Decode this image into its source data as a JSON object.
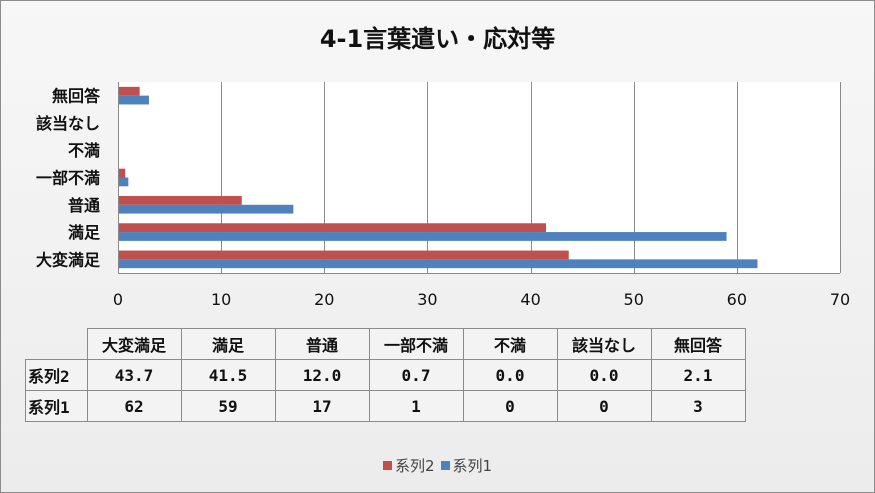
{
  "chart_data": {
    "type": "bar",
    "orientation": "horizontal",
    "title": "4-1言葉遣い・応対等",
    "categories": [
      "大変満足",
      "満足",
      "普通",
      "一部不満",
      "不満",
      "該当なし",
      "無回答"
    ],
    "series": [
      {
        "name": "系列2",
        "color": "#c0504d",
        "values": [
          43.7,
          41.5,
          12.0,
          0.7,
          0.0,
          0.0,
          2.1
        ],
        "display": [
          "43.7",
          "41.5",
          "12.0",
          "0.7",
          "0.0",
          "0.0",
          "2.1"
        ]
      },
      {
        "name": "系列1",
        "color": "#4f81bd",
        "values": [
          62,
          59,
          17,
          1,
          0,
          0,
          3
        ],
        "display": [
          "62",
          "59",
          "17",
          "1",
          "0",
          "0",
          "3"
        ]
      }
    ],
    "xlim": [
      0,
      70
    ],
    "xticks": [
      "0",
      "10",
      "20",
      "30",
      "40",
      "50",
      "60",
      "70"
    ],
    "grid": true,
    "legend": "bottom",
    "data_table": true
  }
}
